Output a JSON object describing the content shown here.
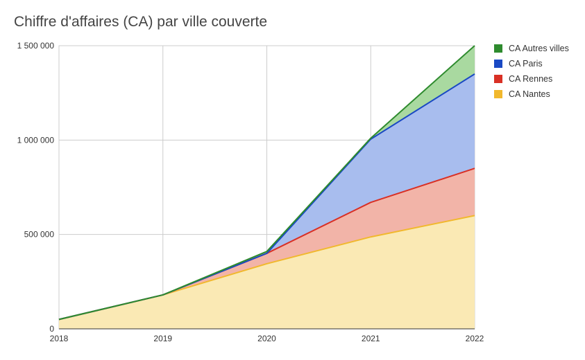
{
  "chart_data": {
    "type": "area",
    "stacked": true,
    "title": "Chiffre d'affaires (CA) par ville couverte",
    "xlabel": "",
    "ylabel": "",
    "categories": [
      "2018",
      "2019",
      "2020",
      "2021",
      "2022"
    ],
    "ylim": [
      0,
      1500000
    ],
    "yticks": [
      {
        "value": 0,
        "label": "0"
      },
      {
        "value": 500000,
        "label": "500 000"
      },
      {
        "value": 1000000,
        "label": "1 000 000"
      },
      {
        "value": 1500000,
        "label": "1 500 000"
      }
    ],
    "grid": true,
    "legend_position": "right",
    "series": [
      {
        "name": "CA Nantes",
        "values": [
          50000,
          180000,
          345000,
          487000,
          600000
        ],
        "line_color": "#f1b82d",
        "fill_color": "#fae9b4"
      },
      {
        "name": "CA Rennes",
        "values": [
          0,
          0,
          55000,
          183000,
          250000
        ],
        "line_color": "#d93025",
        "fill_color": "#f2b4a8"
      },
      {
        "name": "CA Paris",
        "values": [
          0,
          0,
          0,
          335000,
          500000
        ],
        "line_color": "#1a49c4",
        "fill_color": "#a8bdee"
      },
      {
        "name": "CA Autres villes",
        "values": [
          0,
          0,
          10000,
          5000,
          150000
        ],
        "line_color": "#2e8b2e",
        "fill_color": "#a9d9a0"
      }
    ],
    "legend_order": [
      "CA Autres villes",
      "CA Paris",
      "CA Rennes",
      "CA Nantes"
    ]
  }
}
